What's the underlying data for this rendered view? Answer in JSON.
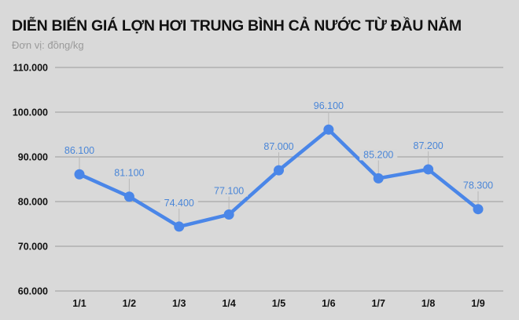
{
  "header": {
    "title": "DIỄN BIẾN GIÁ LỢN HƠI TRUNG BÌNH CẢ NƯỚC TỪ ĐẦU NĂM",
    "subtitle": "Đơn vị: đồng/kg"
  },
  "colors": {
    "background": "#d9d9d9",
    "line": "#4a86e8",
    "label": "#4a86d8",
    "grid": "#a8a8a8"
  },
  "chart_data": {
    "type": "line",
    "title": "DIỄN BIẾN GIÁ LỢN HƠI TRUNG BÌNH CẢ NƯỚC TỪ ĐẦU NĂM",
    "subtitle": "Đơn vị: đồng/kg",
    "xlabel": "",
    "ylabel": "",
    "categories": [
      "1/1",
      "1/2",
      "1/3",
      "1/4",
      "1/5",
      "1/6",
      "1/7",
      "1/8",
      "1/9"
    ],
    "series": [
      {
        "name": "Giá lợn hơi",
        "values": [
          86100,
          81100,
          74400,
          77100,
          87000,
          96100,
          85200,
          87200,
          78300
        ],
        "labels": [
          "86.100",
          "81.100",
          "74.400",
          "77.100",
          "87.000",
          "96.100",
          "85.200",
          "87.200",
          "78.300"
        ]
      }
    ],
    "ylim": [
      60000,
      110000
    ],
    "yticks": [
      110000,
      100000,
      90000,
      80000,
      70000,
      60000
    ],
    "ytick_labels": [
      "110.000",
      "100.000",
      "90.000",
      "80.000",
      "70.000",
      "60.000"
    ],
    "grid": true,
    "legend": "none"
  }
}
